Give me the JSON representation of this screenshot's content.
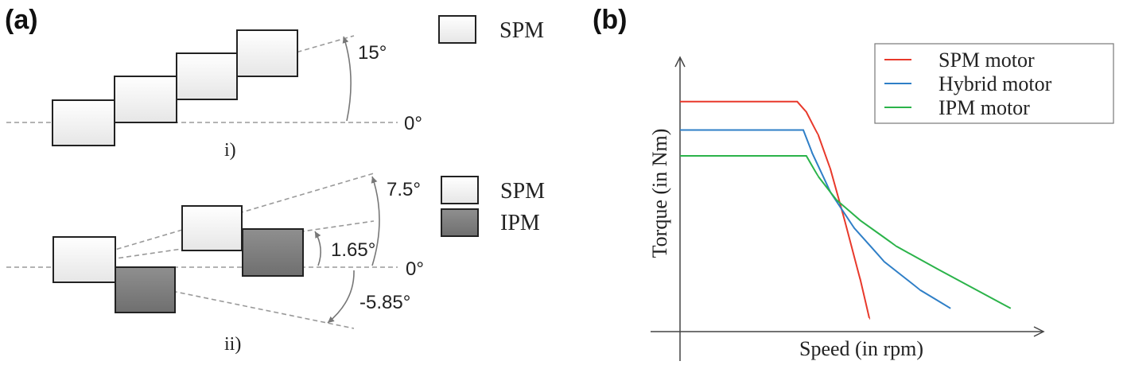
{
  "panel_a": {
    "label": "(a)",
    "sub_i": {
      "caption": "i)",
      "legend_spm": "SPM",
      "angle_top": "15°",
      "angle_zero": "0°"
    },
    "sub_ii": {
      "caption": "ii)",
      "legend_spm": "SPM",
      "legend_ipm": "IPM",
      "angle_top": "7.5°",
      "angle_mid": "1.65°",
      "angle_zero": "0°",
      "angle_bottom": "-5.85°"
    }
  },
  "panel_b": {
    "label": "(b)",
    "xlabel": "Speed (in rpm)",
    "ylabel": "Torque (in Nm)",
    "legend": [
      {
        "name": "SPM motor",
        "color": "#e8392b"
      },
      {
        "name": "Hybrid motor",
        "color": "#2f7fc7"
      },
      {
        "name": "IPM motor",
        "color": "#2bb34a"
      }
    ]
  },
  "chart_data": {
    "type": "line",
    "title": "",
    "xlabel": "Speed (in rpm)",
    "ylabel": "Torque (in Nm)",
    "xlim": [
      0,
      10
    ],
    "ylim": [
      0,
      10
    ],
    "legend_position": "top-right",
    "series": [
      {
        "name": "SPM motor",
        "color": "#e8392b",
        "x": [
          0,
          3.9,
          4.2,
          4.6,
          5.0,
          5.5,
          6.0,
          6.3
        ],
        "y": [
          8.9,
          8.9,
          8.5,
          7.6,
          6.3,
          4.2,
          2.0,
          0.5
        ]
      },
      {
        "name": "Hybrid motor",
        "color": "#2f7fc7",
        "x": [
          0,
          4.1,
          4.4,
          5.0,
          5.8,
          6.8,
          8.0,
          9.0
        ],
        "y": [
          7.8,
          7.8,
          6.9,
          5.4,
          4.0,
          2.7,
          1.6,
          0.9
        ]
      },
      {
        "name": "IPM motor",
        "color": "#2bb34a",
        "x": [
          0,
          4.2,
          4.6,
          5.2,
          6.0,
          7.2,
          8.6,
          11.0
        ],
        "y": [
          6.8,
          6.8,
          6.0,
          5.1,
          4.3,
          3.3,
          2.4,
          0.9
        ]
      }
    ]
  }
}
